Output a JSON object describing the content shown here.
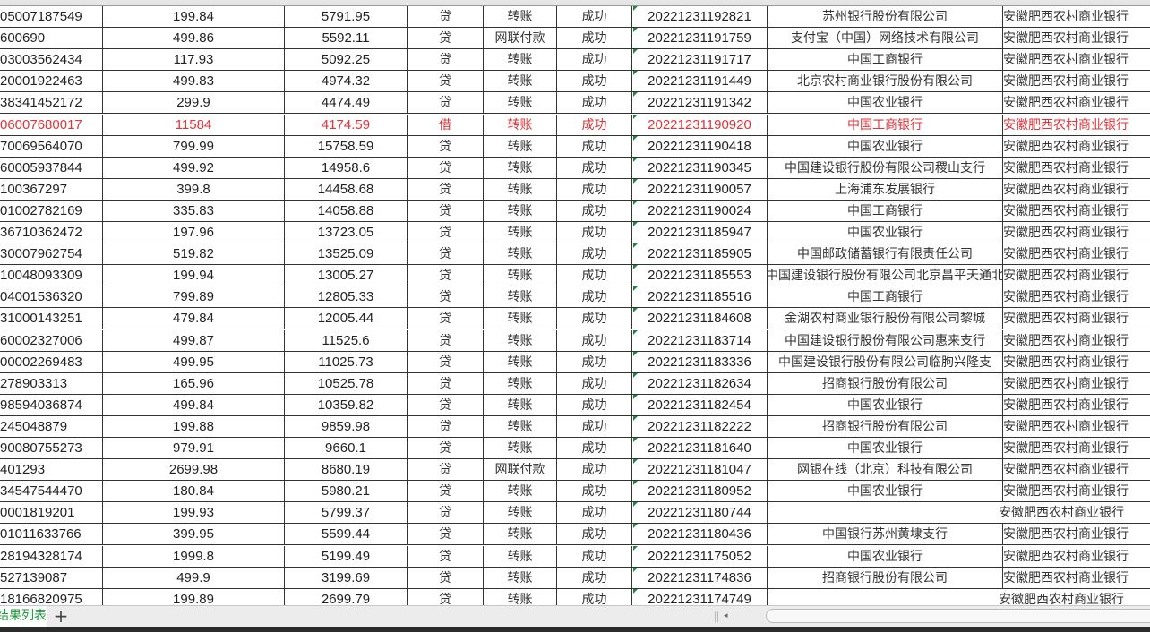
{
  "sheet": {
    "tab_label": "账单结果列表",
    "add_sheet_label": "+",
    "scroll_left_label": "◂"
  },
  "colors": {
    "highlight_text": "#e0333a",
    "sheet_tab_text": "#1e9a3c",
    "text_flag": "#1d8a3a"
  },
  "rows": [
    {
      "account": "05007187549",
      "amount": "199.84",
      "balance": "5791.95",
      "dir": "贷",
      "type": "转账",
      "status": "成功",
      "serial": "20221231192821",
      "bank": "苏州银行股份有限公司",
      "own_bank": "安徽肥西农村商业银行"
    },
    {
      "account": "600690",
      "amount": "499.86",
      "balance": "5592.11",
      "dir": "贷",
      "type": "网联付款",
      "status": "成功",
      "serial": "20221231191759",
      "bank": "支付宝（中国）网络技术有限公司",
      "own_bank": "安徽肥西农村商业银行"
    },
    {
      "account": "03003562434",
      "amount": "117.93",
      "balance": "5092.25",
      "dir": "贷",
      "type": "转账",
      "status": "成功",
      "serial": "20221231191717",
      "bank": "中国工商银行",
      "own_bank": "安徽肥西农村商业银行"
    },
    {
      "account": "20001922463",
      "amount": "499.83",
      "balance": "4974.32",
      "dir": "贷",
      "type": "转账",
      "status": "成功",
      "serial": "20221231191449",
      "bank": "北京农村商业银行股份有限公司",
      "own_bank": "安徽肥西农村商业银行"
    },
    {
      "account": "38341452172",
      "amount": "299.9",
      "balance": "4474.49",
      "dir": "贷",
      "type": "转账",
      "status": "成功",
      "serial": "20221231191342",
      "bank": "中国农业银行",
      "own_bank": "安徽肥西农村商业银行"
    },
    {
      "account": "06007680017",
      "amount": "11584",
      "balance": "4174.59",
      "dir": "借",
      "type": "转账",
      "status": "成功",
      "serial": "20221231190920",
      "bank": "中国工商银行",
      "own_bank": "安徽肥西农村商业银行",
      "highlight": true
    },
    {
      "account": "70069564070",
      "amount": "799.99",
      "balance": "15758.59",
      "dir": "贷",
      "type": "转账",
      "status": "成功",
      "serial": "20221231190418",
      "bank": "中国农业银行",
      "own_bank": "安徽肥西农村商业银行"
    },
    {
      "account": "60005937844",
      "amount": "499.92",
      "balance": "14958.6",
      "dir": "贷",
      "type": "转账",
      "status": "成功",
      "serial": "20221231190345",
      "bank": "中国建设银行股份有限公司稷山支行",
      "own_bank": "安徽肥西农村商业银行"
    },
    {
      "account": "100367297",
      "amount": "399.8",
      "balance": "14458.68",
      "dir": "贷",
      "type": "转账",
      "status": "成功",
      "serial": "20221231190057",
      "bank": "上海浦东发展银行",
      "own_bank": "安徽肥西农村商业银行"
    },
    {
      "account": "01002782169",
      "amount": "335.83",
      "balance": "14058.88",
      "dir": "贷",
      "type": "转账",
      "status": "成功",
      "serial": "20221231190024",
      "bank": "中国工商银行",
      "own_bank": "安徽肥西农村商业银行"
    },
    {
      "account": "36710362472",
      "amount": "197.96",
      "balance": "13723.05",
      "dir": "贷",
      "type": "转账",
      "status": "成功",
      "serial": "20221231185947",
      "bank": "中国农业银行",
      "own_bank": "安徽肥西农村商业银行"
    },
    {
      "account": "30007962754",
      "amount": "519.82",
      "balance": "13525.09",
      "dir": "贷",
      "type": "转账",
      "status": "成功",
      "serial": "20221231185905",
      "bank": "中国邮政储蓄银行有限责任公司",
      "own_bank": "安徽肥西农村商业银行"
    },
    {
      "account": "10048093309",
      "amount": "199.94",
      "balance": "13005.27",
      "dir": "贷",
      "type": "转账",
      "status": "成功",
      "serial": "20221231185553",
      "bank": "中国建设银行股份有限公司北京昌平天通北",
      "own_bank": "安徽肥西农村商业银行"
    },
    {
      "account": "04001536320",
      "amount": "799.89",
      "balance": "12805.33",
      "dir": "贷",
      "type": "转账",
      "status": "成功",
      "serial": "20221231185516",
      "bank": "中国工商银行",
      "own_bank": "安徽肥西农村商业银行"
    },
    {
      "account": "31000143251",
      "amount": "479.84",
      "balance": "12005.44",
      "dir": "贷",
      "type": "转账",
      "status": "成功",
      "serial": "20221231184608",
      "bank": "金湖农村商业银行股份有限公司黎城",
      "own_bank": "安徽肥西农村商业银行"
    },
    {
      "account": "60002327006",
      "amount": "499.87",
      "balance": "11525.6",
      "dir": "贷",
      "type": "转账",
      "status": "成功",
      "serial": "20221231183714",
      "bank": "中国建设银行股份有限公司惠来支行",
      "own_bank": "安徽肥西农村商业银行"
    },
    {
      "account": "00002269483",
      "amount": "499.95",
      "balance": "11025.73",
      "dir": "贷",
      "type": "转账",
      "status": "成功",
      "serial": "20221231183336",
      "bank": "中国建设银行股份有限公司临朐兴隆支",
      "own_bank": "安徽肥西农村商业银行"
    },
    {
      "account": "278903313",
      "amount": "165.96",
      "balance": "10525.78",
      "dir": "贷",
      "type": "转账",
      "status": "成功",
      "serial": "20221231182634",
      "bank": "招商银行股份有限公司",
      "own_bank": "安徽肥西农村商业银行"
    },
    {
      "account": "98594036874",
      "amount": "499.84",
      "balance": "10359.82",
      "dir": "贷",
      "type": "转账",
      "status": "成功",
      "serial": "20221231182454",
      "bank": "中国农业银行",
      "own_bank": "安徽肥西农村商业银行"
    },
    {
      "account": "245048879",
      "amount": "199.88",
      "balance": "9859.98",
      "dir": "贷",
      "type": "转账",
      "status": "成功",
      "serial": "20221231182222",
      "bank": "招商银行股份有限公司",
      "own_bank": "安徽肥西农村商业银行"
    },
    {
      "account": "90080755273",
      "amount": "979.91",
      "balance": "9660.1",
      "dir": "贷",
      "type": "转账",
      "status": "成功",
      "serial": "20221231181640",
      "bank": "中国农业银行",
      "own_bank": "安徽肥西农村商业银行"
    },
    {
      "account": "401293",
      "amount": "2699.98",
      "balance": "8680.19",
      "dir": "贷",
      "type": "网联付款",
      "status": "成功",
      "serial": "20221231181047",
      "bank": "网银在线（北京）科技有限公司",
      "own_bank": "安徽肥西农村商业银行"
    },
    {
      "account": "34547544470",
      "amount": "180.84",
      "balance": "5980.21",
      "dir": "贷",
      "type": "转账",
      "status": "成功",
      "serial": "20221231180952",
      "bank": "中国农业银行",
      "own_bank": "安徽肥西农村商业银行"
    },
    {
      "account": "0001819201",
      "amount": "199.93",
      "balance": "5799.37",
      "dir": "贷",
      "type": "转账",
      "status": "成功",
      "serial": "20221231180744",
      "bank": "",
      "own_bank": "安徽肥西农村商业银行"
    },
    {
      "account": "01011633766",
      "amount": "399.95",
      "balance": "5599.44",
      "dir": "贷",
      "type": "转账",
      "status": "成功",
      "serial": "20221231180436",
      "bank": "中国银行苏州黄埭支行",
      "own_bank": "安徽肥西农村商业银行"
    },
    {
      "account": "28194328174",
      "amount": "1999.8",
      "balance": "5199.49",
      "dir": "贷",
      "type": "转账",
      "status": "成功",
      "serial": "20221231175052",
      "bank": "中国农业银行",
      "own_bank": "安徽肥西农村商业银行"
    },
    {
      "account": "527139087",
      "amount": "499.9",
      "balance": "3199.69",
      "dir": "贷",
      "type": "转账",
      "status": "成功",
      "serial": "20221231174836",
      "bank": "招商银行股份有限公司",
      "own_bank": "安徽肥西农村商业银行"
    },
    {
      "account": "18166820975",
      "amount": "199.89",
      "balance": "2699.79",
      "dir": "贷",
      "type": "转账",
      "status": "成功",
      "serial": "20221231174749",
      "bank": "",
      "own_bank": "安徽肥西农村商业银行"
    }
  ]
}
